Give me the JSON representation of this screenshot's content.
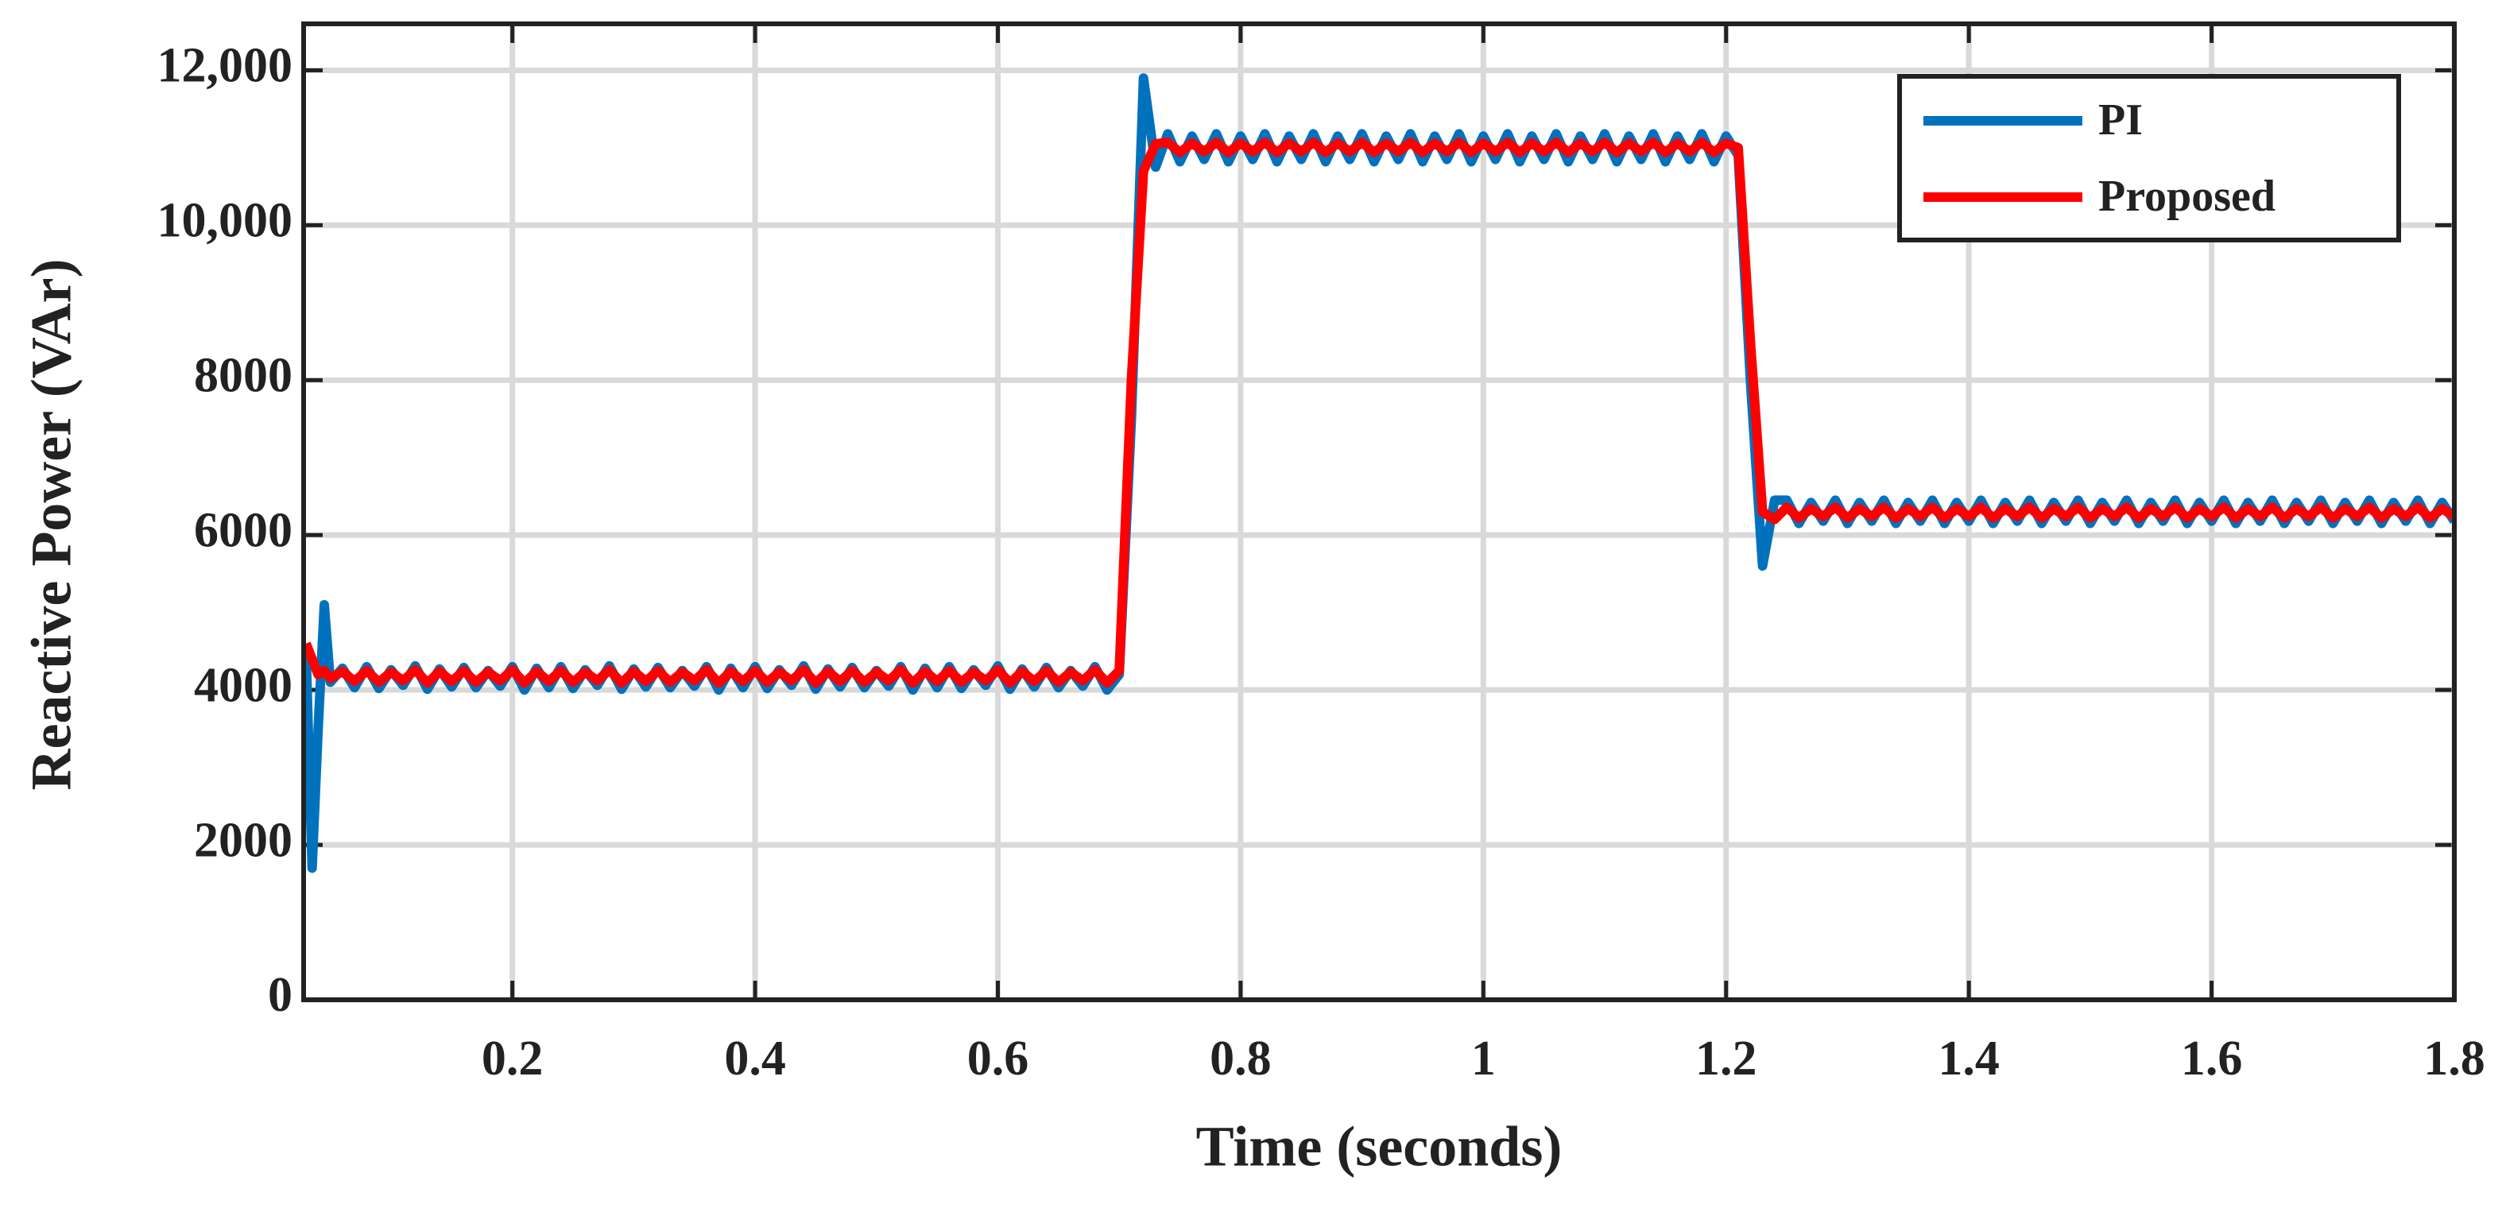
{
  "chart_data": {
    "type": "line",
    "xlabel": "Time (seconds)",
    "ylabel": "Reactive Power (VAr)",
    "xlim": [
      0.028,
      1.8
    ],
    "ylim": [
      0,
      12600
    ],
    "xticks": [
      0.2,
      0.4,
      0.6,
      0.8,
      1,
      1.2,
      1.4,
      1.6,
      1.8
    ],
    "yticks": [
      0,
      2000,
      4000,
      6000,
      8000,
      {
        "value": 10000,
        "label": "10,000"
      },
      {
        "value": 12000,
        "label": "12,000"
      }
    ],
    "grid": true,
    "legend": "upper right",
    "x": [
      0.03,
      0.035,
      0.04,
      0.045,
      0.05,
      0.06,
      0.07,
      0.08,
      0.09,
      0.1,
      0.11,
      0.12,
      0.13,
      0.14,
      0.15,
      0.16,
      0.17,
      0.18,
      0.19,
      0.2,
      0.21,
      0.22,
      0.23,
      0.24,
      0.25,
      0.26,
      0.27,
      0.28,
      0.29,
      0.3,
      0.31,
      0.32,
      0.33,
      0.34,
      0.35,
      0.36,
      0.37,
      0.38,
      0.39,
      0.4,
      0.41,
      0.42,
      0.43,
      0.44,
      0.45,
      0.46,
      0.47,
      0.48,
      0.49,
      0.5,
      0.51,
      0.52,
      0.53,
      0.54,
      0.55,
      0.56,
      0.57,
      0.58,
      0.59,
      0.6,
      0.61,
      0.62,
      0.63,
      0.64,
      0.65,
      0.66,
      0.67,
      0.68,
      0.69,
      0.7,
      0.71,
      0.72,
      0.73,
      0.74,
      0.75,
      0.76,
      0.77,
      0.78,
      0.79,
      0.8,
      0.81,
      0.82,
      0.83,
      0.84,
      0.85,
      0.86,
      0.87,
      0.88,
      0.89,
      0.9,
      0.91,
      0.92,
      0.93,
      0.94,
      0.95,
      0.96,
      0.97,
      0.98,
      0.99,
      1.0,
      1.01,
      1.02,
      1.03,
      1.04,
      1.05,
      1.06,
      1.07,
      1.08,
      1.09,
      1.1,
      1.11,
      1.12,
      1.13,
      1.14,
      1.15,
      1.16,
      1.17,
      1.18,
      1.19,
      1.2,
      1.21,
      1.22,
      1.23,
      1.24,
      1.25,
      1.26,
      1.27,
      1.28,
      1.29,
      1.3,
      1.31,
      1.32,
      1.33,
      1.34,
      1.35,
      1.36,
      1.37,
      1.38,
      1.39,
      1.4,
      1.41,
      1.42,
      1.43,
      1.44,
      1.45,
      1.46,
      1.47,
      1.48,
      1.49,
      1.5,
      1.51,
      1.52,
      1.53,
      1.54,
      1.55,
      1.56,
      1.57,
      1.58,
      1.59,
      1.6,
      1.61,
      1.62,
      1.63,
      1.64,
      1.65,
      1.66,
      1.67,
      1.68,
      1.69,
      1.7,
      1.71,
      1.72,
      1.73,
      1.74,
      1.75,
      1.76,
      1.77,
      1.78,
      1.79,
      1.8
    ],
    "series": [
      {
        "name": "PI",
        "color": "#0072bd",
        "values": [
          4500,
          1700,
          3500,
          5100,
          4100,
          4280,
          4030,
          4300,
          4020,
          4260,
          4060,
          4310,
          4010,
          4270,
          4040,
          4290,
          4030,
          4250,
          4050,
          4300,
          4000,
          4280,
          4030,
          4300,
          4020,
          4260,
          4060,
          4310,
          4010,
          4270,
          4040,
          4290,
          4030,
          4250,
          4050,
          4300,
          4000,
          4280,
          4030,
          4300,
          4020,
          4260,
          4060,
          4310,
          4010,
          4270,
          4040,
          4290,
          4030,
          4250,
          4050,
          4300,
          4000,
          4280,
          4030,
          4300,
          4020,
          4260,
          4060,
          4310,
          4010,
          4270,
          4040,
          4290,
          4030,
          4250,
          4050,
          4300,
          4000,
          4200,
          7500,
          11900,
          10750,
          11180,
          10820,
          11150,
          10850,
          11180,
          10820,
          11150,
          10850,
          11180,
          10820,
          11150,
          10850,
          11180,
          10820,
          11150,
          10850,
          11180,
          10820,
          11150,
          10850,
          11180,
          10820,
          11150,
          10850,
          11180,
          10820,
          11150,
          10850,
          11180,
          10820,
          11150,
          10850,
          11180,
          10820,
          11150,
          10850,
          11180,
          10820,
          11150,
          10850,
          11180,
          10820,
          11150,
          10850,
          11180,
          10820,
          11150,
          10900,
          8000,
          5600,
          6450,
          6450,
          6150,
          6420,
          6180,
          6450,
          6150,
          6420,
          6180,
          6450,
          6150,
          6420,
          6180,
          6450,
          6150,
          6420,
          6180,
          6450,
          6150,
          6420,
          6180,
          6450,
          6150,
          6420,
          6180,
          6450,
          6150,
          6420,
          6180,
          6450,
          6150,
          6420,
          6180,
          6450,
          6150,
          6420,
          6180,
          6450,
          6150,
          6420,
          6180,
          6450,
          6150,
          6420,
          6180,
          6450,
          6150,
          6420,
          6180,
          6450,
          6150,
          6420,
          6180,
          6450,
          6150,
          6420,
          6180
        ]
      },
      {
        "name": "Proposed",
        "color": "#ff0000",
        "values": [
          4600,
          4400,
          4200,
          4250,
          4150,
          4240,
          4110,
          4250,
          4100,
          4230,
          4120,
          4260,
          4090,
          4240,
          4110,
          4250,
          4100,
          4230,
          4120,
          4260,
          4090,
          4240,
          4110,
          4250,
          4100,
          4230,
          4120,
          4260,
          4090,
          4240,
          4110,
          4250,
          4100,
          4230,
          4120,
          4260,
          4090,
          4240,
          4110,
          4250,
          4100,
          4230,
          4120,
          4260,
          4090,
          4240,
          4110,
          4250,
          4100,
          4230,
          4120,
          4260,
          4090,
          4240,
          4110,
          4250,
          4100,
          4230,
          4120,
          4260,
          4090,
          4240,
          4110,
          4250,
          4100,
          4230,
          4120,
          4260,
          4090,
          4250,
          8000,
          10700,
          11050,
          11070,
          10940,
          11060,
          10950,
          11070,
          10940,
          11060,
          10950,
          11070,
          10940,
          11060,
          10950,
          11070,
          10940,
          11060,
          10950,
          11070,
          10940,
          11060,
          10950,
          11070,
          10940,
          11060,
          10950,
          11070,
          10940,
          11060,
          10950,
          11070,
          10940,
          11060,
          10950,
          11070,
          10940,
          11060,
          10950,
          11070,
          10940,
          11060,
          10950,
          11070,
          10940,
          11060,
          10950,
          11070,
          10940,
          11060,
          11000,
          8500,
          6300,
          6200,
          6360,
          6220,
          6340,
          6240,
          6360,
          6220,
          6340,
          6240,
          6360,
          6220,
          6340,
          6240,
          6360,
          6220,
          6340,
          6240,
          6360,
          6220,
          6340,
          6240,
          6360,
          6220,
          6340,
          6240,
          6360,
          6220,
          6340,
          6240,
          6360,
          6220,
          6340,
          6240,
          6360,
          6220,
          6340,
          6240,
          6360,
          6220,
          6340,
          6240,
          6360,
          6220,
          6340,
          6240,
          6360,
          6220,
          6340,
          6240,
          6360,
          6220,
          6340,
          6240,
          6360,
          6220,
          6340,
          6240
        ]
      }
    ]
  }
}
